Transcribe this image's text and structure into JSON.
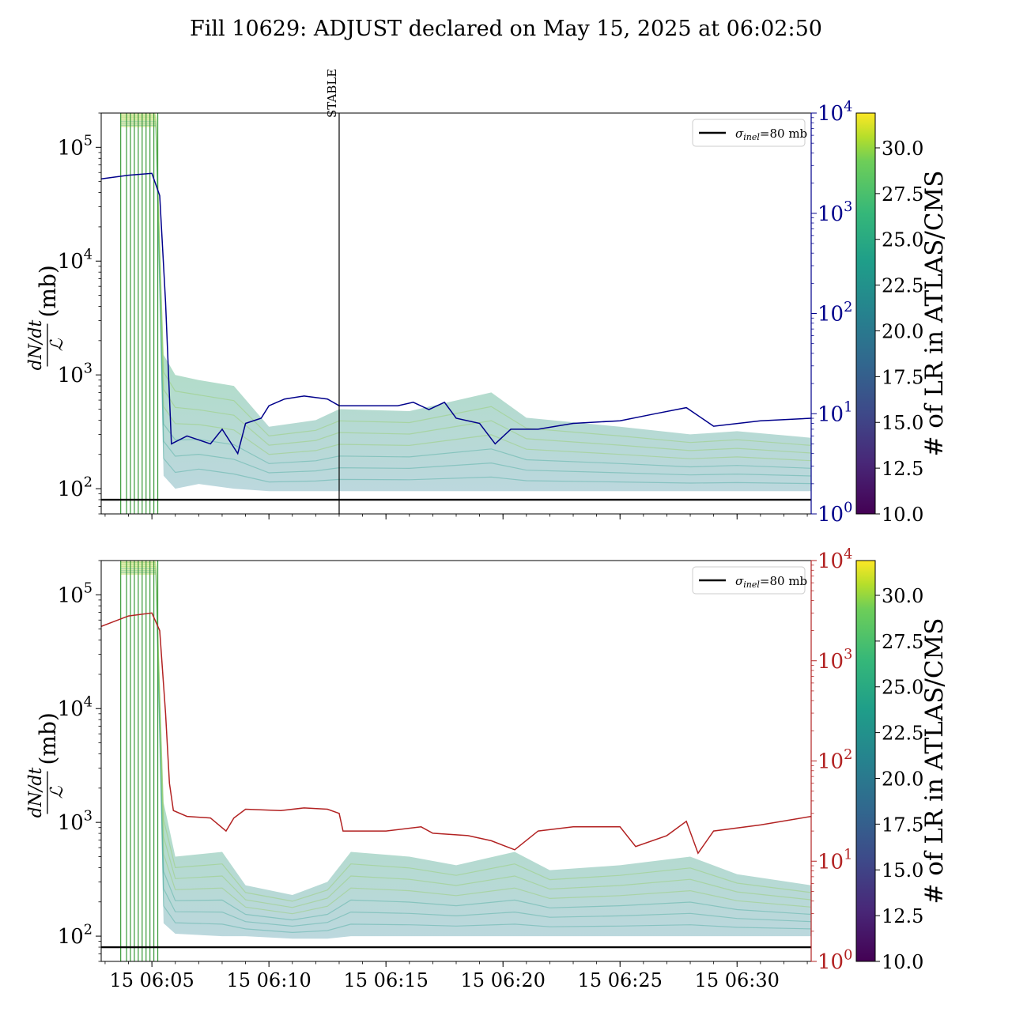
{
  "title": "Fill 10629: ADJUST declared on May 15, 2025 at 06:02:50",
  "colors": {
    "top_rate_line": "#00008b",
    "bottom_rate_line": "#b22222",
    "sigma_line": "#000000",
    "marker_line": "#000000",
    "adjust_lines": "#3a9a3a"
  },
  "colorbar": {
    "label": "# of LR in ATLAS/CMS",
    "range": [
      10.0,
      31.9
    ],
    "ticks": [
      "10.0",
      "12.5",
      "15.0",
      "17.5",
      "20.0",
      "22.5",
      "25.0",
      "27.5",
      "30.0"
    ]
  },
  "chart_data": [
    {
      "type": "line",
      "panel": "top",
      "ylabel_num": "dN/dt",
      "ylabel_den": "ℒ",
      "ylabel_unit": "(mb)",
      "yscale": "log",
      "ylim": [
        60,
        200000
      ],
      "left_ticks": [
        {
          "value": 100,
          "base": "10",
          "exp": "2"
        },
        {
          "value": 1000,
          "base": "10",
          "exp": "3"
        },
        {
          "value": 10000,
          "base": "10",
          "exp": "4"
        },
        {
          "value": 100000,
          "base": "10",
          "exp": "5"
        }
      ],
      "right_yscale": "log",
      "right_ylim": [
        1,
        10000
      ],
      "right_ticks": [
        {
          "value": 1,
          "base": "10",
          "exp": "0"
        },
        {
          "value": 10,
          "base": "10",
          "exp": "1"
        },
        {
          "value": 100,
          "base": "10",
          "exp": "2"
        },
        {
          "value": 1000,
          "base": "10",
          "exp": "3"
        },
        {
          "value": 10000,
          "base": "10",
          "exp": "4"
        }
      ],
      "xlim": [
        "06:02:50",
        "06:33:10"
      ],
      "x_ticks": [
        "15 06:05",
        "15 06:10",
        "15 06:15",
        "15 06:20",
        "15 06:25",
        "15 06:30"
      ],
      "x_tick_times": [
        "06:05",
        "06:10",
        "06:15",
        "06:20",
        "06:25",
        "06:30"
      ],
      "show_x_tick_labels": false,
      "legend": {
        "label_sigma": "σ",
        "label_sub": "inel",
        "label_rest": "=80 mb",
        "position": "upper right"
      },
      "sigma_inel_mb": 80,
      "marker": {
        "label": "STABLE",
        "time": "06:13:00"
      },
      "adjust_line_times": [
        "06:03:40",
        "06:03:55",
        "06:04:05",
        "06:04:15",
        "06:04:25",
        "06:04:35",
        "06:04:45",
        "06:04:55",
        "06:05:05",
        "06:05:15"
      ],
      "band": [
        {
          "t": "06:03:40",
          "low": 150000,
          "high": 200000
        },
        {
          "t": "06:05:10",
          "low": 150000,
          "high": 200000
        },
        {
          "t": "06:05:30",
          "low": 130,
          "high": 1500
        },
        {
          "t": "06:06:00",
          "low": 100,
          "high": 1000
        },
        {
          "t": "06:07:00",
          "low": 110,
          "high": 900
        },
        {
          "t": "06:08:30",
          "low": 100,
          "high": 800
        },
        {
          "t": "06:10:00",
          "low": 95,
          "high": 350
        },
        {
          "t": "06:12:00",
          "low": 95,
          "high": 400
        },
        {
          "t": "06:13:00",
          "low": 95,
          "high": 500
        },
        {
          "t": "06:16:00",
          "low": 95,
          "high": 480
        },
        {
          "t": "06:19:30",
          "low": 95,
          "high": 700
        },
        {
          "t": "06:21:00",
          "low": 95,
          "high": 420
        },
        {
          "t": "06:25:00",
          "low": 95,
          "high": 350
        },
        {
          "t": "06:28:00",
          "low": 95,
          "high": 300
        },
        {
          "t": "06:30:00",
          "low": 95,
          "high": 320
        },
        {
          "t": "06:33:10",
          "low": 95,
          "high": 280
        }
      ],
      "rate_series": [
        {
          "t": "06:02:50",
          "v": 2200
        },
        {
          "t": "06:04:00",
          "v": 2400
        },
        {
          "t": "06:05:00",
          "v": 2500
        },
        {
          "t": "06:05:20",
          "v": 1500
        },
        {
          "t": "06:05:35",
          "v": 130
        },
        {
          "t": "06:05:50",
          "v": 5
        },
        {
          "t": "06:06:30",
          "v": 6
        },
        {
          "t": "06:07:30",
          "v": 5
        },
        {
          "t": "06:08:00",
          "v": 7
        },
        {
          "t": "06:08:40",
          "v": 4
        },
        {
          "t": "06:09:00",
          "v": 8
        },
        {
          "t": "06:09:40",
          "v": 9
        },
        {
          "t": "06:10:00",
          "v": 12
        },
        {
          "t": "06:10:40",
          "v": 14
        },
        {
          "t": "06:11:30",
          "v": 15
        },
        {
          "t": "06:12:30",
          "v": 14
        },
        {
          "t": "06:13:00",
          "v": 12
        },
        {
          "t": "06:15:30",
          "v": 12
        },
        {
          "t": "06:16:10",
          "v": 13
        },
        {
          "t": "06:16:50",
          "v": 11
        },
        {
          "t": "06:17:30",
          "v": 13
        },
        {
          "t": "06:18:00",
          "v": 9
        },
        {
          "t": "06:19:00",
          "v": 8
        },
        {
          "t": "06:19:40",
          "v": 5
        },
        {
          "t": "06:20:20",
          "v": 7
        },
        {
          "t": "06:21:30",
          "v": 7
        },
        {
          "t": "06:23:00",
          "v": 8
        },
        {
          "t": "06:25:00",
          "v": 8.5
        },
        {
          "t": "06:26:30",
          "v": 10
        },
        {
          "t": "06:27:50",
          "v": 11.5
        },
        {
          "t": "06:29:00",
          "v": 7.5
        },
        {
          "t": "06:31:00",
          "v": 8.5
        },
        {
          "t": "06:33:10",
          "v": 9
        }
      ]
    },
    {
      "type": "line",
      "panel": "bottom",
      "ylabel_num": "dN/dt",
      "ylabel_den": "ℒ",
      "ylabel_unit": "(mb)",
      "yscale": "log",
      "ylim": [
        60,
        200000
      ],
      "left_ticks": [
        {
          "value": 100,
          "base": "10",
          "exp": "2"
        },
        {
          "value": 1000,
          "base": "10",
          "exp": "3"
        },
        {
          "value": 10000,
          "base": "10",
          "exp": "4"
        },
        {
          "value": 100000,
          "base": "10",
          "exp": "5"
        }
      ],
      "right_yscale": "log",
      "right_ylim": [
        1,
        10000
      ],
      "right_ticks": [
        {
          "value": 1,
          "base": "10",
          "exp": "0"
        },
        {
          "value": 10,
          "base": "10",
          "exp": "1"
        },
        {
          "value": 100,
          "base": "10",
          "exp": "2"
        },
        {
          "value": 1000,
          "base": "10",
          "exp": "3"
        },
        {
          "value": 10000,
          "base": "10",
          "exp": "4"
        }
      ],
      "xlim": [
        "06:02:50",
        "06:33:10"
      ],
      "x_ticks": [
        "15 06:05",
        "15 06:10",
        "15 06:15",
        "15 06:20",
        "15 06:25",
        "15 06:30"
      ],
      "x_tick_times": [
        "06:05",
        "06:10",
        "06:15",
        "06:20",
        "06:25",
        "06:30"
      ],
      "show_x_tick_labels": true,
      "legend": {
        "label_sigma": "σ",
        "label_sub": "inel",
        "label_rest": "=80 mb",
        "position": "upper right"
      },
      "sigma_inel_mb": 80,
      "adjust_line_times": [
        "06:03:40",
        "06:03:55",
        "06:04:05",
        "06:04:15",
        "06:04:25",
        "06:04:35",
        "06:04:45",
        "06:04:55",
        "06:05:05",
        "06:05:15"
      ],
      "band": [
        {
          "t": "06:03:40",
          "low": 150000,
          "high": 200000
        },
        {
          "t": "06:05:10",
          "low": 150000,
          "high": 200000
        },
        {
          "t": "06:05:30",
          "low": 130,
          "high": 1500
        },
        {
          "t": "06:06:00",
          "low": 105,
          "high": 500
        },
        {
          "t": "06:08:00",
          "low": 100,
          "high": 550
        },
        {
          "t": "06:09:00",
          "low": 100,
          "high": 280
        },
        {
          "t": "06:11:00",
          "low": 95,
          "high": 230
        },
        {
          "t": "06:12:30",
          "low": 95,
          "high": 300
        },
        {
          "t": "06:13:30",
          "low": 100,
          "high": 550
        },
        {
          "t": "06:16:00",
          "low": 100,
          "high": 500
        },
        {
          "t": "06:18:00",
          "low": 100,
          "high": 420
        },
        {
          "t": "06:20:30",
          "low": 100,
          "high": 550
        },
        {
          "t": "06:22:00",
          "low": 100,
          "high": 380
        },
        {
          "t": "06:25:00",
          "low": 100,
          "high": 420
        },
        {
          "t": "06:28:00",
          "low": 100,
          "high": 500
        },
        {
          "t": "06:30:00",
          "low": 100,
          "high": 350
        },
        {
          "t": "06:33:10",
          "low": 100,
          "high": 280
        }
      ],
      "rate_series": [
        {
          "t": "06:02:50",
          "v": 2200
        },
        {
          "t": "06:04:00",
          "v": 2800
        },
        {
          "t": "06:05:00",
          "v": 3000
        },
        {
          "t": "06:05:20",
          "v": 2000
        },
        {
          "t": "06:05:35",
          "v": 300
        },
        {
          "t": "06:05:45",
          "v": 60
        },
        {
          "t": "06:05:55",
          "v": 32
        },
        {
          "t": "06:06:30",
          "v": 28
        },
        {
          "t": "06:07:30",
          "v": 27
        },
        {
          "t": "06:08:10",
          "v": 20
        },
        {
          "t": "06:08:30",
          "v": 27
        },
        {
          "t": "06:09:00",
          "v": 33
        },
        {
          "t": "06:10:30",
          "v": 32
        },
        {
          "t": "06:11:30",
          "v": 34
        },
        {
          "t": "06:12:30",
          "v": 33
        },
        {
          "t": "06:13:00",
          "v": 30
        },
        {
          "t": "06:13:10",
          "v": 20
        },
        {
          "t": "06:15:00",
          "v": 20
        },
        {
          "t": "06:16:30",
          "v": 22
        },
        {
          "t": "06:17:00",
          "v": 19
        },
        {
          "t": "06:18:30",
          "v": 18
        },
        {
          "t": "06:19:30",
          "v": 16
        },
        {
          "t": "06:20:30",
          "v": 13
        },
        {
          "t": "06:21:30",
          "v": 20
        },
        {
          "t": "06:23:00",
          "v": 22
        },
        {
          "t": "06:25:00",
          "v": 22
        },
        {
          "t": "06:25:40",
          "v": 14
        },
        {
          "t": "06:27:00",
          "v": 18
        },
        {
          "t": "06:27:50",
          "v": 25
        },
        {
          "t": "06:28:20",
          "v": 12
        },
        {
          "t": "06:29:00",
          "v": 20
        },
        {
          "t": "06:31:00",
          "v": 23
        },
        {
          "t": "06:33:10",
          "v": 28
        }
      ]
    }
  ]
}
